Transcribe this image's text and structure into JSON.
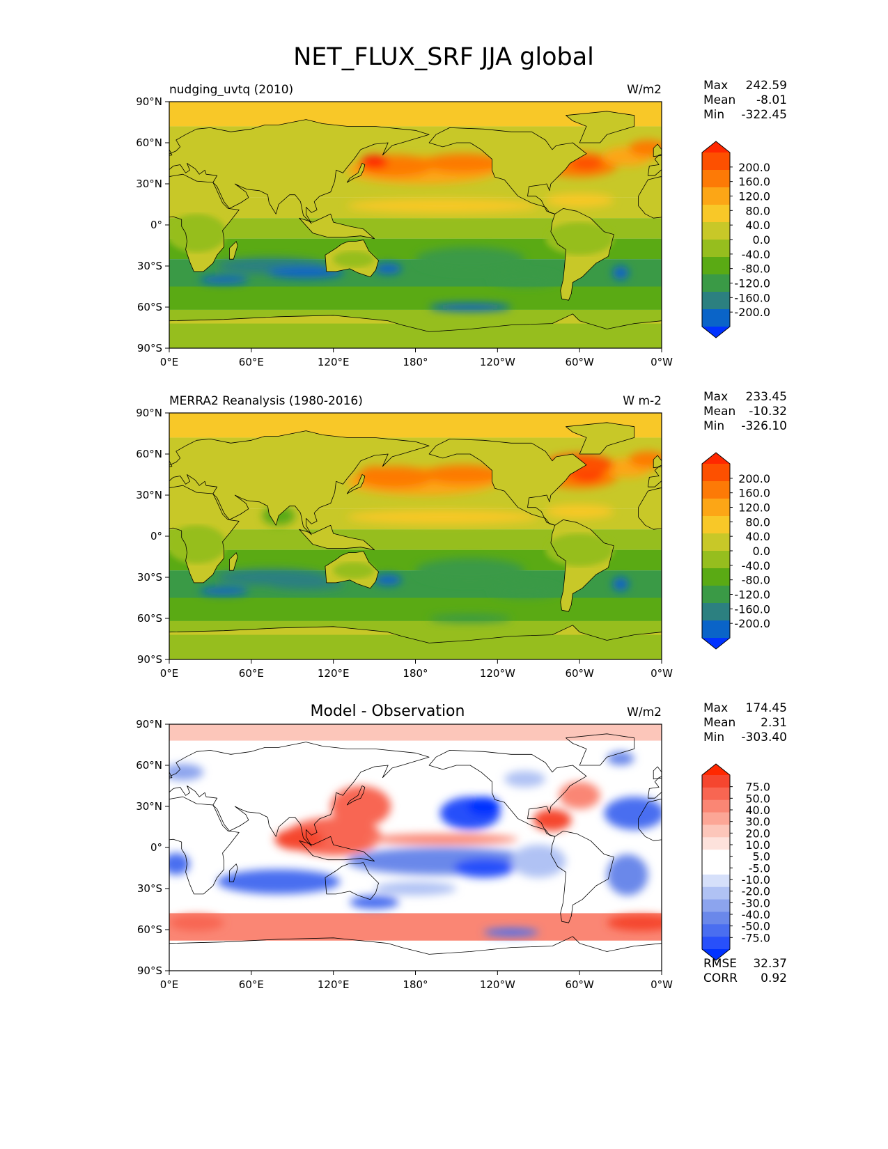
{
  "figure_title": "NET_FLUX_SRF JJA global",
  "colors": {
    "abs_levels": [
      "#0032ff",
      "#0a64c8",
      "#2c8080",
      "#3a9a46",
      "#5aaa14",
      "#96be1e",
      "#c8c828",
      "#f8c828",
      "#fca616",
      "#fd7a06",
      "#fd5000",
      "#ff2800"
    ],
    "diff_levels": [
      "#0032ff",
      "#2850fa",
      "#4a6ef0",
      "#6a88ea",
      "#8ca4ee",
      "#b0c2f4",
      "#d6e0fa",
      "#ffffff",
      "#ffffff",
      "#fde2dc",
      "#fcc6ba",
      "#fca696",
      "#fa8674",
      "#f86652",
      "#f5462f",
      "#ff2800"
    ],
    "coastline": "#000000"
  },
  "chart_data": [
    {
      "type": "heatmap",
      "panel": "test",
      "title_left": "nudging_uvtq (2010)",
      "title_center": "",
      "units": "W/m2",
      "stats": [
        {
          "label": "Max",
          "value": "242.59"
        },
        {
          "label": "Mean",
          "value": "-8.01"
        },
        {
          "label": "Min",
          "value": "-322.45"
        }
      ],
      "extra_stats": [],
      "colorbar_ticks": [
        "200.0",
        "160.0",
        "120.0",
        "80.0",
        "40.0",
        "0.0",
        "-40.0",
        "-80.0",
        "-120.0",
        "-160.0",
        "-200.0"
      ],
      "colorbar_extend": "both",
      "xticks": [
        "0°E",
        "60°E",
        "120°E",
        "180°",
        "120°W",
        "60°W",
        "0°W"
      ],
      "yticks": [
        "90°N",
        "60°N",
        "30°N",
        "0°",
        "30°S",
        "60°S",
        "90°S"
      ],
      "xlim": [
        0,
        360
      ],
      "ylim": [
        -90,
        90
      ]
    },
    {
      "type": "heatmap",
      "panel": "reference",
      "title_left": "MERRA2 Reanalysis (1980-2016)",
      "title_center": "",
      "units": "W m-2",
      "stats": [
        {
          "label": "Max",
          "value": "233.45"
        },
        {
          "label": "Mean",
          "value": "-10.32"
        },
        {
          "label": "Min",
          "value": "-326.10"
        }
      ],
      "extra_stats": [],
      "colorbar_ticks": [
        "200.0",
        "160.0",
        "120.0",
        "80.0",
        "40.0",
        "0.0",
        "-40.0",
        "-80.0",
        "-120.0",
        "-160.0",
        "-200.0"
      ],
      "colorbar_extend": "both",
      "xticks": [
        "0°E",
        "60°E",
        "120°E",
        "180°",
        "120°W",
        "60°W",
        "0°W"
      ],
      "yticks": [
        "90°N",
        "60°N",
        "30°N",
        "0°",
        "30°S",
        "60°S",
        "90°S"
      ],
      "xlim": [
        0,
        360
      ],
      "ylim": [
        -90,
        90
      ]
    },
    {
      "type": "heatmap",
      "panel": "difference",
      "title_left": "",
      "title_center": "Model - Observation",
      "units": "W/m2",
      "stats": [
        {
          "label": "Max",
          "value": "174.45"
        },
        {
          "label": "Mean",
          "value": "2.31"
        },
        {
          "label": "Min",
          "value": "-303.40"
        }
      ],
      "extra_stats": [
        {
          "label": "RMSE",
          "value": "32.37"
        },
        {
          "label": "CORR",
          "value": "0.92"
        }
      ],
      "colorbar_ticks": [
        "75.0",
        "50.0",
        "40.0",
        "30.0",
        "20.0",
        "10.0",
        "5.0",
        "-5.0",
        "-10.0",
        "-20.0",
        "-30.0",
        "-40.0",
        "-50.0",
        "-75.0"
      ],
      "colorbar_extend": "both",
      "xticks": [
        "0°E",
        "60°E",
        "120°E",
        "180°",
        "120°W",
        "60°W",
        "0°W"
      ],
      "yticks": [
        "90°N",
        "60°N",
        "30°N",
        "0°",
        "30°S",
        "60°S",
        "90°S"
      ],
      "xlim": [
        0,
        360
      ],
      "ylim": [
        -90,
        90
      ]
    }
  ]
}
